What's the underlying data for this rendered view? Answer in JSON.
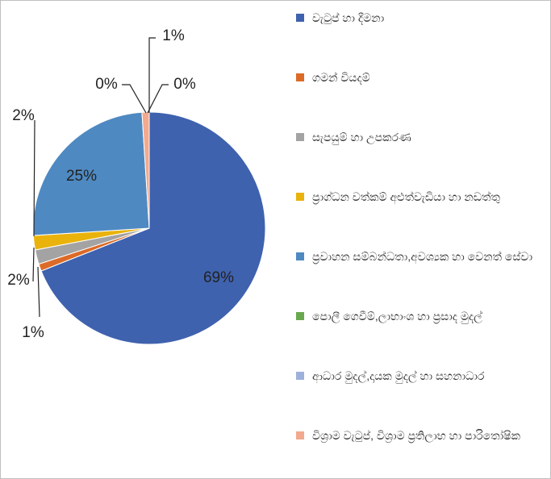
{
  "chart_data": {
    "type": "pie",
    "categories": [
      "වැටුප් හා දීමනා",
      "ගමන් වියදම්",
      "සැපයුම් හා උපකරණ",
      "ප්‍රාග්ධන වත්කම් අළුත්වැඩියා හා නඩත්තු",
      "ප්‍රවාහන සම්බන්ධතා,අවශ්‍යක හා වෙනත් සේවා",
      "පොලී ගෙවීම්,ලාභාංශ හා ප්‍රසාද මුදල්",
      "ආධාර මුදල්,දායක මුදල් හා සහනාධාර",
      "විශ්‍රාම වැටුප්, විශ්‍රාම ප්‍රතිලාභ හා පාරිතෝෂික"
    ],
    "values": [
      69,
      1,
      2,
      2,
      25,
      0,
      0,
      1
    ],
    "value_labels": [
      "69%",
      "1%",
      "2%",
      "2%",
      "25%",
      "0%",
      "0%",
      "1%"
    ],
    "colors": [
      "#3f62ae",
      "#dc6b27",
      "#a3a3a3",
      "#e9b30c",
      "#4f89c1",
      "#6aa84f",
      "#9db1dc",
      "#f3a98d"
    ],
    "legend": "right"
  }
}
